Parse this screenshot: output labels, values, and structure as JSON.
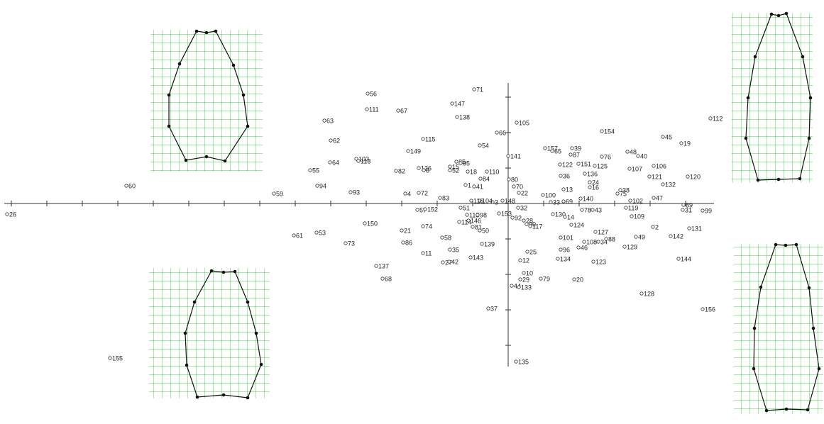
{
  "chart_data": {
    "type": "scatter",
    "labels": [
      "26",
      "60",
      "59",
      "61",
      "53",
      "155",
      "55",
      "94",
      "63",
      "62",
      "64",
      "93",
      "103",
      "113",
      "56",
      "111",
      "67",
      "73",
      "150",
      "137",
      "68",
      "82",
      "149",
      "115",
      "4",
      "72",
      "57",
      "152",
      "21",
      "74",
      "86",
      "11",
      "27",
      "42",
      "35",
      "58",
      "83",
      "126",
      "8",
      "147",
      "138",
      "71",
      "54",
      "66",
      "105",
      "141",
      "85",
      "95",
      "15",
      "52",
      "18",
      "110",
      "84",
      "1",
      "41",
      "80",
      "70",
      "22",
      "148",
      "3",
      "104",
      "116",
      "51",
      "118",
      "98",
      "114",
      "146",
      "81",
      "50",
      "139",
      "143",
      "153",
      "32",
      "92",
      "28",
      "90",
      "117",
      "25",
      "12",
      "10",
      "29",
      "44",
      "133",
      "79",
      "37",
      "135",
      "20",
      "134",
      "96",
      "101",
      "46",
      "108",
      "34",
      "88",
      "127",
      "124",
      "123",
      "130",
      "14",
      "78",
      "43",
      "100",
      "33",
      "69",
      "140",
      "13",
      "24",
      "16",
      "36",
      "136",
      "122",
      "151",
      "125",
      "157",
      "65",
      "39",
      "87",
      "76",
      "154",
      "48",
      "40",
      "107",
      "106",
      "121",
      "132",
      "75",
      "38",
      "102",
      "47",
      "119",
      "109",
      "2",
      "49",
      "129",
      "142",
      "45",
      "19",
      "120",
      "89",
      "31",
      "99",
      "131",
      "144",
      "112",
      "128",
      "156"
    ],
    "x": [
      -70.6,
      -53.8,
      -33,
      -30.2,
      -27,
      -56.1,
      -27.9,
      -26.9,
      -25.9,
      -25,
      -25.1,
      -22.2,
      -21.4,
      -21.1,
      -19.8,
      -19.9,
      -15.5,
      -22.9,
      -20.2,
      -18.6,
      -17.7,
      -15.8,
      -14.1,
      -12,
      -14.5,
      -12.6,
      -12.8,
      -11.7,
      -15,
      -12,
      -14.8,
      -12,
      -9.2,
      -8.3,
      -8.2,
      -9.3,
      -9.6,
      -12.6,
      -11.9,
      -7.9,
      -7.2,
      -4.8,
      -4,
      -1.6,
      1.2,
      0,
      -7.3,
      -6.7,
      -8.2,
      -8.2,
      -5.7,
      -3,
      -3.9,
      -6,
      -4.8,
      0.1,
      0.8,
      1.5,
      -0.8,
      -2.2,
      -4,
      -5.2,
      -6.7,
      -5.8,
      -4.3,
      -6.9,
      -5.6,
      -5,
      -4,
      -3.7,
      -5.3,
      -1.3,
      1.4,
      0.6,
      2.2,
      2.6,
      3.1,
      2.7,
      1.7,
      2.2,
      1.7,
      0.5,
      1.5,
      4.6,
      -2.8,
      1.1,
      9.3,
      7,
      7.4,
      7.4,
      9.9,
      10.7,
      12.7,
      13.8,
      12.3,
      8.9,
      12,
      6.3,
      8,
      10.4,
      11.9,
      4.9,
      6,
      7.8,
      10.2,
      7.8,
      11.5,
      11.5,
      7.4,
      10.8,
      7.3,
      9.9,
      12.2,
      5.2,
      6.2,
      9,
      8.8,
      13.2,
      13.2,
      16.8,
      18.3,
      17.1,
      20.5,
      19.9,
      21.8,
      15.4,
      15.8,
      17.2,
      20.5,
      16.6,
      17.4,
      20.4,
      18,
      16.4,
      22.9,
      21.8,
      24.4,
      25.3,
      24.7,
      24.6,
      27.4,
      25.5,
      24,
      28.5,
      18.8,
      27.4
    ],
    "y": [
      -1.5,
      2.5,
      1.4,
      -4.5,
      -4.1,
      -21.8,
      4.7,
      2.5,
      11.7,
      8.9,
      5.8,
      1.6,
      6.3,
      6,
      15.5,
      13.3,
      13.1,
      -5.6,
      -2.8,
      -8.8,
      -10.6,
      4.6,
      7.4,
      9.1,
      1.4,
      1.5,
      -0.9,
      -0.8,
      -3.8,
      -3.2,
      -5.5,
      -7,
      -8.3,
      -8.2,
      -6.5,
      -4.8,
      0.8,
      5,
      4.7,
      14.1,
      12.2,
      16.1,
      8.2,
      10,
      11.4,
      6.7,
      5.9,
      5.7,
      5.2,
      4.7,
      4.5,
      4.5,
      3.5,
      2.6,
      2.4,
      3.4,
      2.4,
      1.5,
      0.4,
      0.2,
      0.4,
      0.4,
      -0.6,
      -1.6,
      -1.6,
      -2.6,
      -2.4,
      -3.3,
      -3.8,
      -5.7,
      -7.6,
      -1.4,
      -0.6,
      -2,
      -2.4,
      -2.9,
      -3.2,
      -6.8,
      -8,
      -9.8,
      -10.7,
      -11.6,
      -11.8,
      -10.6,
      -14.8,
      -22.3,
      -10.7,
      -7.8,
      -6.5,
      -4.8,
      -6.2,
      -5.4,
      -5.4,
      -5,
      -4,
      -3,
      -8.2,
      -1.5,
      -1.9,
      -0.9,
      -0.9,
      1.2,
      0.2,
      0.3,
      0.7,
      2,
      3,
      2.3,
      3.9,
      4.2,
      5.5,
      5.6,
      5.3,
      7.8,
      7.4,
      7.8,
      6.9,
      6.6,
      10.2,
      7.3,
      6.7,
      4.9,
      5.3,
      3.8,
      2.7,
      1.4,
      1.9,
      0.4,
      0.8,
      -0.6,
      -1.8,
      -3.3,
      -4.7,
      -6.1,
      -4.6,
      9.4,
      8.5,
      3.8,
      -0.2,
      -0.9,
      -1,
      -3.5,
      -7.8,
      12,
      -12.7,
      -14.9
    ],
    "xlim": [
      -71,
      29
    ],
    "ylim": [
      -23,
      17
    ],
    "xticks": [
      -70,
      -65,
      -60,
      -55,
      -50,
      -45,
      -40,
      -35,
      -30,
      -25,
      -20,
      -15,
      -10,
      -5,
      0,
      5,
      10,
      15,
      20,
      25
    ],
    "yticks": [
      -20,
      -15,
      -10,
      -5,
      0,
      5,
      10,
      15
    ],
    "color": "#333333",
    "grid": false
  }
}
